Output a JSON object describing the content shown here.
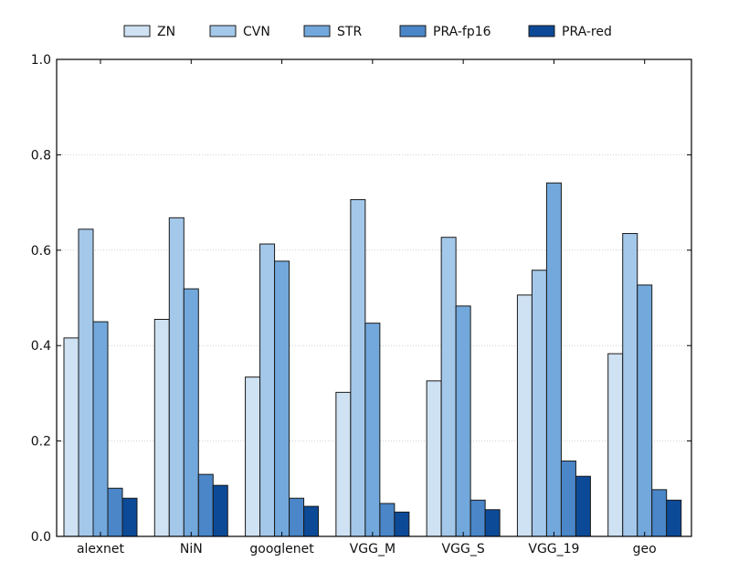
{
  "chart_data": {
    "type": "bar",
    "categories": [
      "alexnet",
      "NiN",
      "googlenet",
      "VGG_M",
      "VGG_S",
      "VGG_19",
      "geo"
    ],
    "series": [
      {
        "name": "ZN",
        "color": "#cfe2f3",
        "values": [
          0.416,
          0.455,
          0.334,
          0.302,
          0.326,
          0.506,
          0.383
        ]
      },
      {
        "name": "CVN",
        "color": "#a4c8ea",
        "values": [
          0.644,
          0.668,
          0.613,
          0.706,
          0.627,
          0.558,
          0.635
        ]
      },
      {
        "name": "STR",
        "color": "#72a8dc",
        "values": [
          0.45,
          0.519,
          0.577,
          0.447,
          0.483,
          0.741,
          0.527
        ]
      },
      {
        "name": "PRA-fp16",
        "color": "#4a86c8",
        "values": [
          0.101,
          0.13,
          0.08,
          0.069,
          0.076,
          0.158,
          0.098
        ]
      },
      {
        "name": "PRA-red",
        "color": "#0c4a97",
        "values": [
          0.08,
          0.107,
          0.063,
          0.051,
          0.056,
          0.126,
          0.076
        ]
      }
    ],
    "ylim": [
      0,
      1.0
    ],
    "yticks": [
      "0.0",
      "0.2",
      "0.4",
      "0.6",
      "0.8",
      "1.0"
    ],
    "ytick_values": [
      0,
      0.2,
      0.4,
      0.6,
      0.8,
      1.0
    ],
    "grid": true,
    "legend_position": "top-center"
  }
}
